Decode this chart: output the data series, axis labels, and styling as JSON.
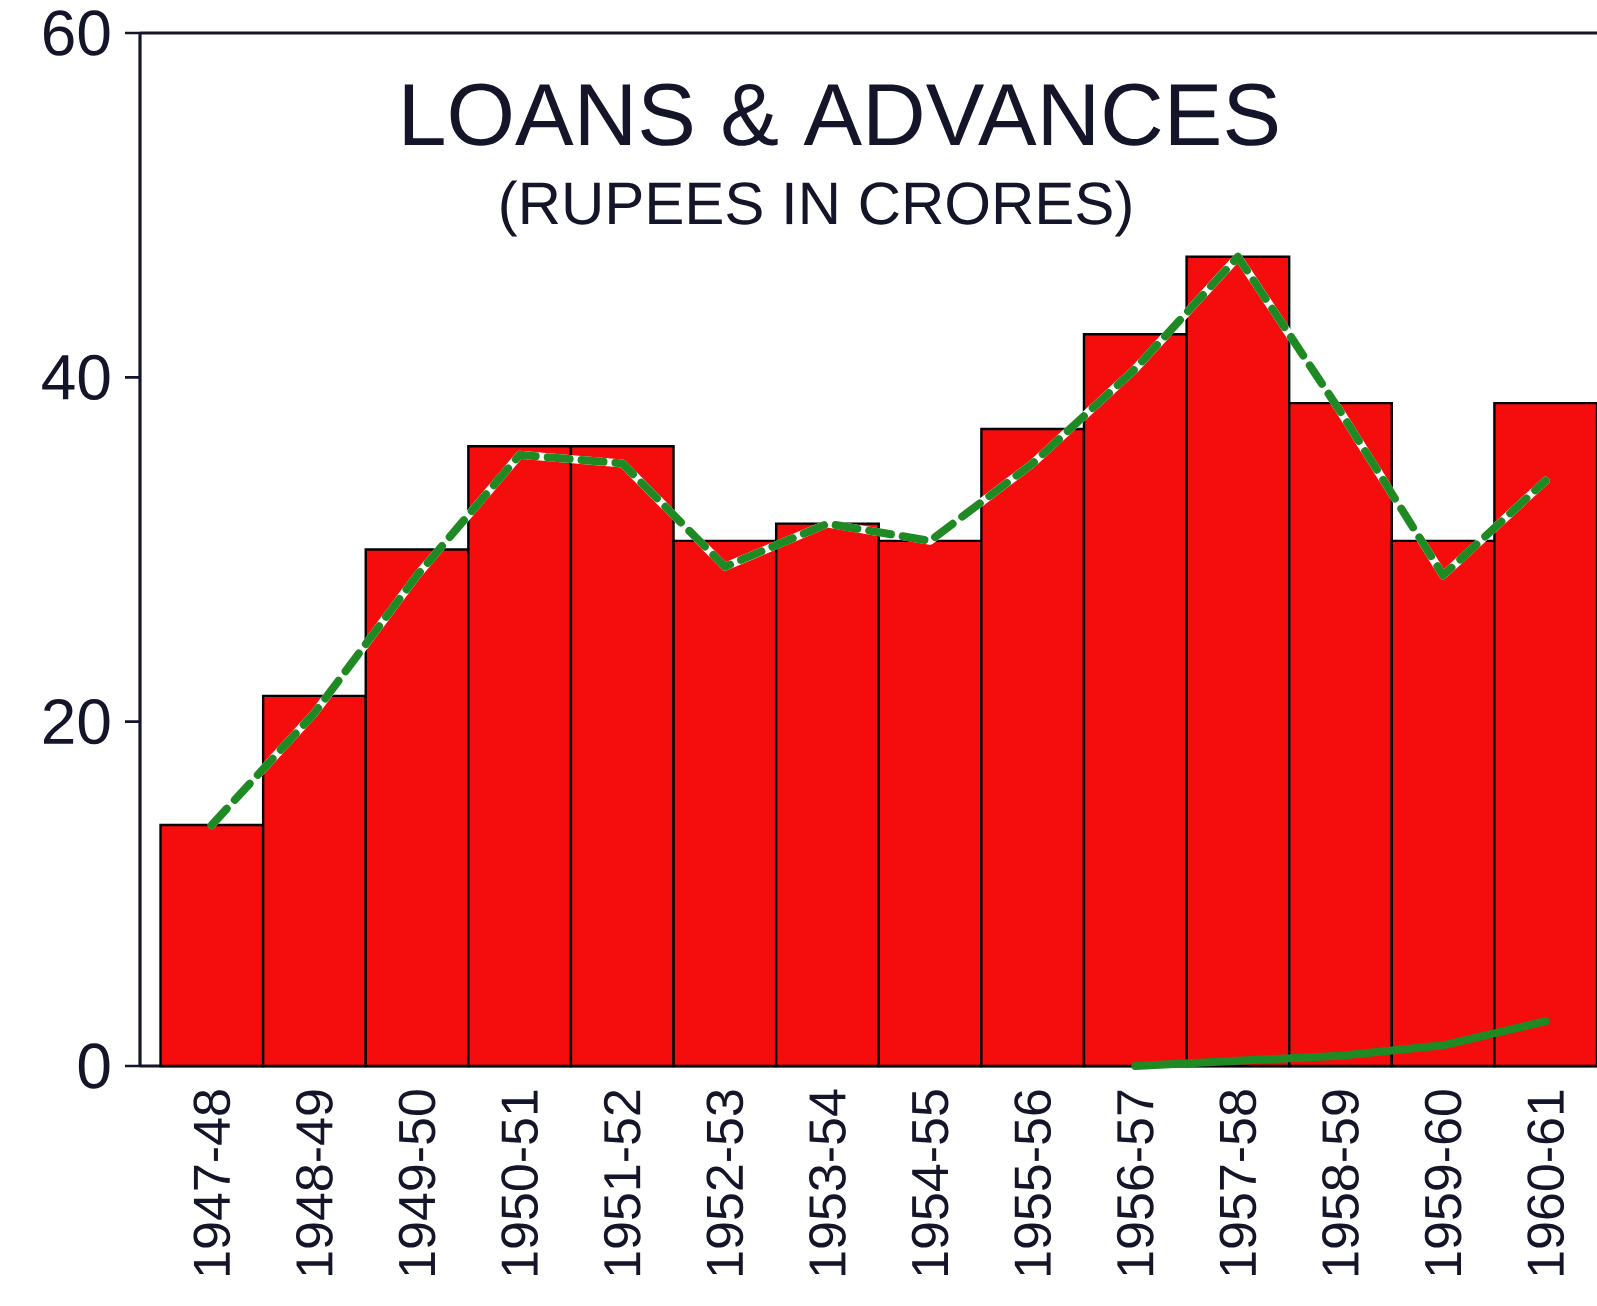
{
  "chart_data": {
    "type": "bar",
    "title": "LOANS & ADVANCES",
    "subtitle": "(RUPEES IN CRORES)",
    "categories": [
      "1947-48",
      "1948-49",
      "1949-50",
      "1950-51",
      "1951-52",
      "1952-53",
      "1953-54",
      "1954-55",
      "1955-56",
      "1956-57",
      "1957-58",
      "1958-59",
      "1959-60",
      "1960-61"
    ],
    "series": [
      {
        "color": "#f50d0d",
        "values": [
          14,
          21.5,
          30,
          36,
          36,
          30.5,
          31.5,
          30.5,
          37,
          42.5,
          47,
          38.5,
          30.5,
          38.5
        ]
      },
      {
        "type": "line",
        "color": "#1f8a24",
        "line_style": "solid",
        "values": [
          null,
          null,
          null,
          null,
          null,
          null,
          null,
          null,
          null,
          0,
          0.3,
          0.6,
          1.2,
          2.6
        ]
      },
      {
        "type": "line",
        "color": "#1f8a24",
        "line_style": "dashed",
        "values": [
          14,
          20.5,
          28.5,
          35.5,
          35,
          29,
          31.5,
          30.5,
          35,
          40.5,
          47,
          38,
          28.5,
          34
        ]
      }
    ],
    "ylim": [
      0,
      60
    ],
    "yticks": [
      0,
      20,
      40,
      60
    ]
  }
}
